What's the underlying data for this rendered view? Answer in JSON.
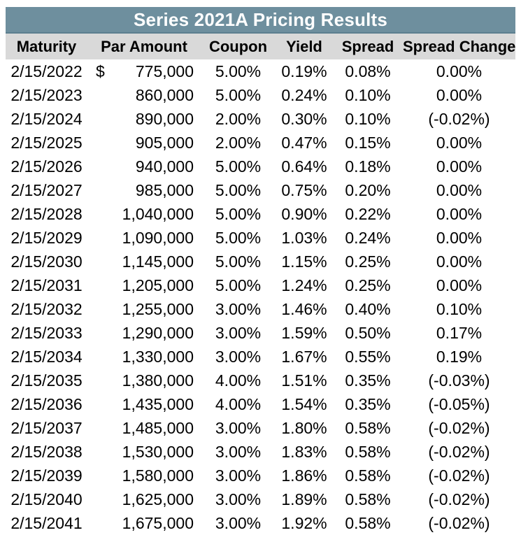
{
  "title": "Series 2021A Pricing Results",
  "colors": {
    "title_bg": "#6E8F9E",
    "title_text": "#FFFFFF",
    "header_bg": "#D9D9D9",
    "body_text": "#000000"
  },
  "table": {
    "columns": [
      "Maturity",
      "Par Amount",
      "Coupon",
      "Yield",
      "Spread",
      "Spread Change"
    ],
    "rows": [
      {
        "maturity": "2/15/2022",
        "dollar": "$",
        "par": "775,000",
        "coupon": "5.00%",
        "yield": "0.19%",
        "spread": "0.08%",
        "change": "0.00%"
      },
      {
        "maturity": "2/15/2023",
        "dollar": "",
        "par": "860,000",
        "coupon": "5.00%",
        "yield": "0.24%",
        "spread": "0.10%",
        "change": "0.00%"
      },
      {
        "maturity": "2/15/2024",
        "dollar": "",
        "par": "890,000",
        "coupon": "2.00%",
        "yield": "0.30%",
        "spread": "0.10%",
        "change": "(-0.02%)"
      },
      {
        "maturity": "2/15/2025",
        "dollar": "",
        "par": "905,000",
        "coupon": "2.00%",
        "yield": "0.47%",
        "spread": "0.15%",
        "change": "0.00%"
      },
      {
        "maturity": "2/15/2026",
        "dollar": "",
        "par": "940,000",
        "coupon": "5.00%",
        "yield": "0.64%",
        "spread": "0.18%",
        "change": "0.00%"
      },
      {
        "maturity": "2/15/2027",
        "dollar": "",
        "par": "985,000",
        "coupon": "5.00%",
        "yield": "0.75%",
        "spread": "0.20%",
        "change": "0.00%"
      },
      {
        "maturity": "2/15/2028",
        "dollar": "",
        "par": "1,040,000",
        "coupon": "5.00%",
        "yield": "0.90%",
        "spread": "0.22%",
        "change": "0.00%"
      },
      {
        "maturity": "2/15/2029",
        "dollar": "",
        "par": "1,090,000",
        "coupon": "5.00%",
        "yield": "1.03%",
        "spread": "0.24%",
        "change": "0.00%"
      },
      {
        "maturity": "2/15/2030",
        "dollar": "",
        "par": "1,145,000",
        "coupon": "5.00%",
        "yield": "1.15%",
        "spread": "0.25%",
        "change": "0.00%"
      },
      {
        "maturity": "2/15/2031",
        "dollar": "",
        "par": "1,205,000",
        "coupon": "5.00%",
        "yield": "1.24%",
        "spread": "0.25%",
        "change": "0.00%"
      },
      {
        "maturity": "2/15/2032",
        "dollar": "",
        "par": "1,255,000",
        "coupon": "3.00%",
        "yield": "1.46%",
        "spread": "0.40%",
        "change": "0.10%"
      },
      {
        "maturity": "2/15/2033",
        "dollar": "",
        "par": "1,290,000",
        "coupon": "3.00%",
        "yield": "1.59%",
        "spread": "0.50%",
        "change": "0.17%"
      },
      {
        "maturity": "2/15/2034",
        "dollar": "",
        "par": "1,330,000",
        "coupon": "3.00%",
        "yield": "1.67%",
        "spread": "0.55%",
        "change": "0.19%"
      },
      {
        "maturity": "2/15/2035",
        "dollar": "",
        "par": "1,380,000",
        "coupon": "4.00%",
        "yield": "1.51%",
        "spread": "0.35%",
        "change": "(-0.03%)"
      },
      {
        "maturity": "2/15/2036",
        "dollar": "",
        "par": "1,435,000",
        "coupon": "4.00%",
        "yield": "1.54%",
        "spread": "0.35%",
        "change": "(-0.05%)"
      },
      {
        "maturity": "2/15/2037",
        "dollar": "",
        "par": "1,485,000",
        "coupon": "3.00%",
        "yield": "1.80%",
        "spread": "0.58%",
        "change": "(-0.02%)"
      },
      {
        "maturity": "2/15/2038",
        "dollar": "",
        "par": "1,530,000",
        "coupon": "3.00%",
        "yield": "1.83%",
        "spread": "0.58%",
        "change": "(-0.02%)"
      },
      {
        "maturity": "2/15/2039",
        "dollar": "",
        "par": "1,580,000",
        "coupon": "3.00%",
        "yield": "1.86%",
        "spread": "0.58%",
        "change": "(-0.02%)"
      },
      {
        "maturity": "2/15/2040",
        "dollar": "",
        "par": "1,625,000",
        "coupon": "3.00%",
        "yield": "1.89%",
        "spread": "0.58%",
        "change": "(-0.02%)"
      },
      {
        "maturity": "2/15/2041",
        "dollar": "",
        "par": "1,675,000",
        "coupon": "3.00%",
        "yield": "1.92%",
        "spread": "0.58%",
        "change": "(-0.02%)"
      }
    ]
  }
}
